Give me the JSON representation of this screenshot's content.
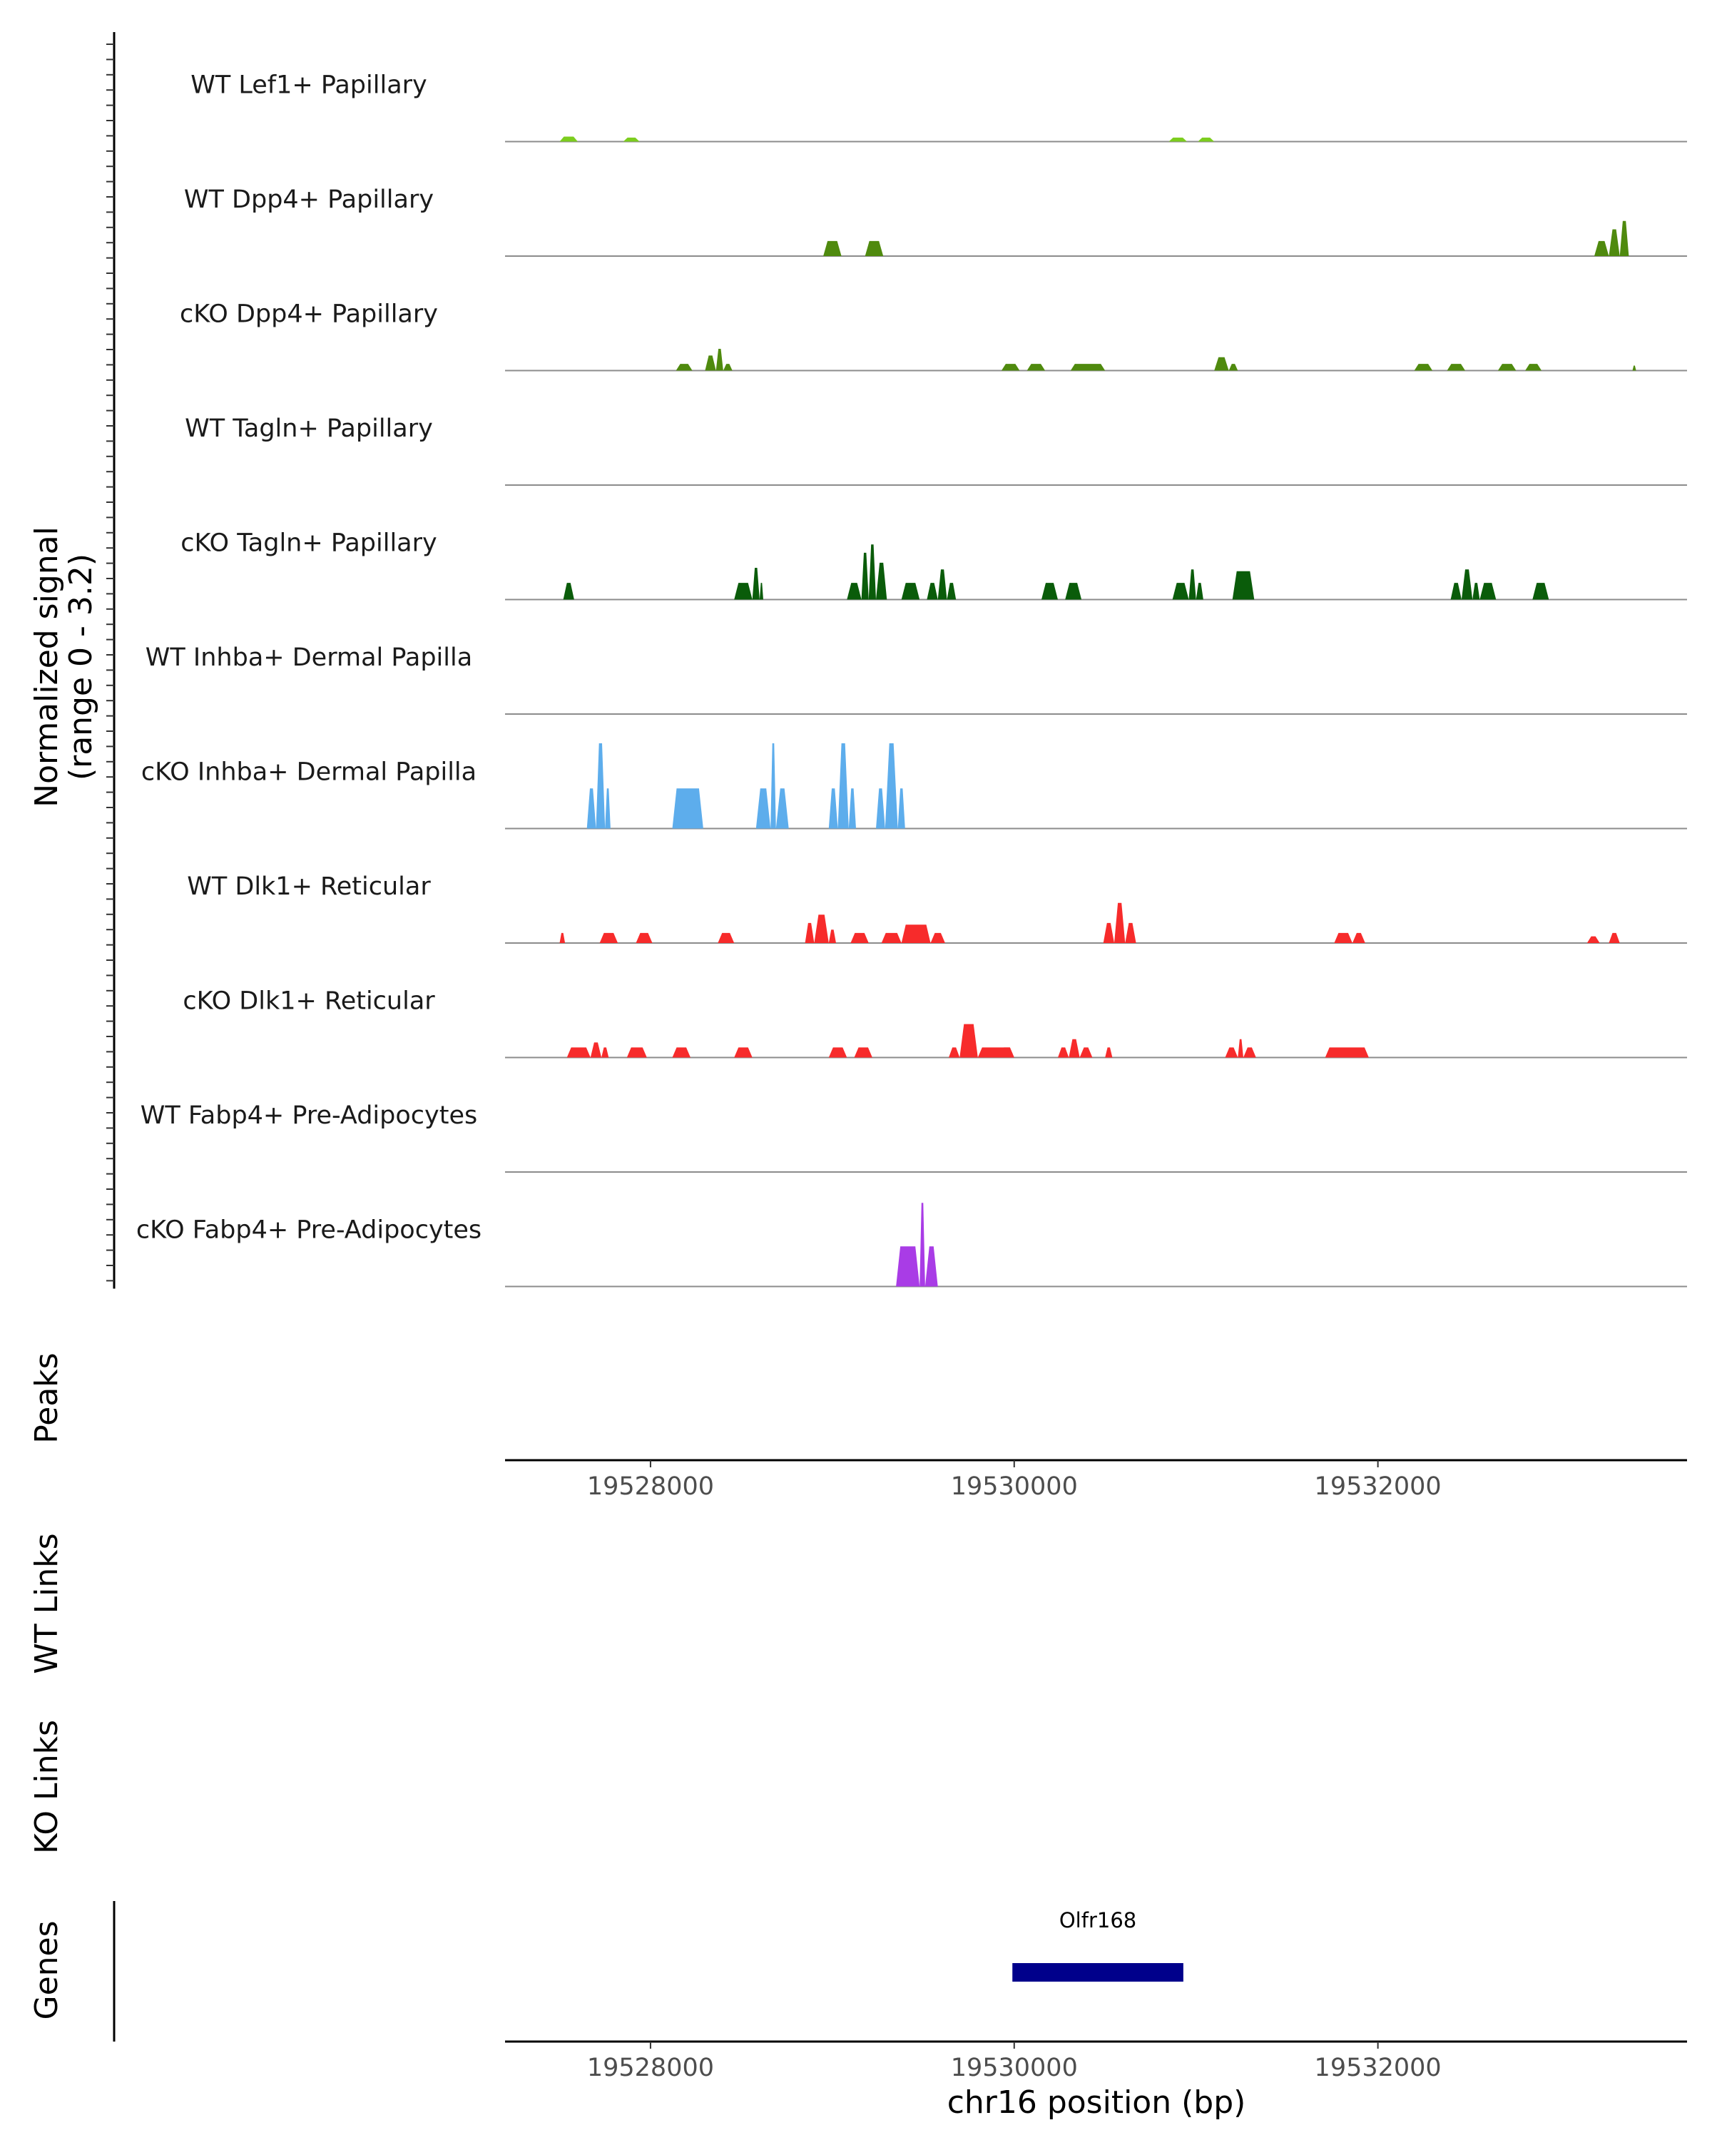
{
  "chart_data": {
    "type": "coverage-track",
    "region": {
      "chrom": "chr16",
      "start": 19527200,
      "end": 19533700
    },
    "coverage": {
      "ylabel_line1": "Normalized signal",
      "ylabel_line2": "(range 0 - 3.2)",
      "ylim": [
        0,
        3.2
      ],
      "tracks": [
        {
          "name": "WT Lef1+ Papillary",
          "color": "#7CCD1E",
          "segments": [
            [
              19527500,
              19527600,
              0.15
            ],
            [
              19527850,
              19527940,
              0.12
            ],
            [
              19530850,
              19530950,
              0.12
            ],
            [
              19531010,
              19531100,
              0.12
            ]
          ]
        },
        {
          "name": "WT Dpp4+ Papillary",
          "color": "#4F8A0E",
          "segments": [
            [
              19528950,
              19529050,
              0.45
            ],
            [
              19529180,
              19529280,
              0.45
            ],
            [
              19533190,
              19533270,
              0.45
            ],
            [
              19533270,
              19533330,
              0.8
            ],
            [
              19533330,
              19533380,
              1.05
            ]
          ]
        },
        {
          "name": "cKO Dpp4+ Papillary",
          "color": "#4F8A0E",
          "segments": [
            [
              19528140,
              19528230,
              0.2
            ],
            [
              19528300,
              19528360,
              0.45
            ],
            [
              19528360,
              19528400,
              0.65
            ],
            [
              19528400,
              19528450,
              0.2
            ],
            [
              19529930,
              19530030,
              0.2
            ],
            [
              19530070,
              19530170,
              0.2
            ],
            [
              19530310,
              19530500,
              0.2
            ],
            [
              19531100,
              19531180,
              0.4
            ],
            [
              19531180,
              19531230,
              0.2
            ],
            [
              19532200,
              19532300,
              0.2
            ],
            [
              19532380,
              19532480,
              0.2
            ],
            [
              19532660,
              19532760,
              0.2
            ],
            [
              19532810,
              19532900,
              0.2
            ],
            [
              19533400,
              19533420,
              0.15
            ]
          ]
        },
        {
          "name": "WT Tagln+ Papillary",
          "color": "#0A5C0A",
          "segments": []
        },
        {
          "name": "cKO Tagln+ Papillary",
          "color": "#0A5C0A",
          "segments": [
            [
              19527520,
              19527580,
              0.5
            ],
            [
              19528460,
              19528560,
              0.5
            ],
            [
              19528560,
              19528600,
              0.95
            ],
            [
              19528600,
              19528620,
              0.5
            ],
            [
              19529080,
              19529160,
              0.5
            ],
            [
              19529160,
              19529200,
              1.4
            ],
            [
              19529200,
              19529240,
              1.65
            ],
            [
              19529240,
              19529300,
              1.1
            ],
            [
              19529380,
              19529480,
              0.5
            ],
            [
              19529520,
              19529580,
              0.5
            ],
            [
              19529580,
              19529630,
              0.9
            ],
            [
              19529630,
              19529680,
              0.5
            ],
            [
              19530150,
              19530240,
              0.5
            ],
            [
              19530280,
              19530370,
              0.5
            ],
            [
              19530870,
              19530960,
              0.5
            ],
            [
              19530960,
              19531000,
              0.9
            ],
            [
              19531000,
              19531040,
              0.5
            ],
            [
              19531200,
              19531320,
              0.85
            ],
            [
              19532400,
              19532460,
              0.5
            ],
            [
              19532460,
              19532520,
              0.9
            ],
            [
              19532520,
              19532560,
              0.5
            ],
            [
              19532560,
              19532650,
              0.5
            ],
            [
              19532850,
              19532940,
              0.5
            ]
          ]
        },
        {
          "name": "WT Inhba+ Dermal Papilla",
          "color": "#5DADEC",
          "segments": []
        },
        {
          "name": "cKO Inhba+ Dermal Papilla",
          "color": "#5DADEC",
          "segments": [
            [
              19527650,
              19527700,
              1.2
            ],
            [
              19527700,
              19527750,
              2.55
            ],
            [
              19527750,
              19527780,
              1.2
            ],
            [
              19528120,
              19528290,
              1.2
            ],
            [
              19528580,
              19528660,
              1.2
            ],
            [
              19528660,
              19528690,
              2.55
            ],
            [
              19528690,
              19528760,
              1.2
            ],
            [
              19528980,
              19529030,
              1.2
            ],
            [
              19529030,
              19529090,
              2.55
            ],
            [
              19529090,
              19529130,
              1.2
            ],
            [
              19529240,
              19529290,
              1.2
            ],
            [
              19529290,
              19529360,
              2.55
            ],
            [
              19529360,
              19529400,
              1.2
            ]
          ]
        },
        {
          "name": "WT Dlk1+ Reticular",
          "color": "#F72B2B",
          "segments": [
            [
              19527500,
              19527530,
              0.3
            ],
            [
              19527720,
              19527820,
              0.3
            ],
            [
              19527920,
              19528010,
              0.3
            ],
            [
              19528370,
              19528460,
              0.3
            ],
            [
              19528850,
              19528900,
              0.6
            ],
            [
              19528900,
              19528980,
              0.85
            ],
            [
              19528980,
              19529020,
              0.4
            ],
            [
              19529100,
              19529200,
              0.3
            ],
            [
              19529270,
              19529380,
              0.3
            ],
            [
              19529380,
              19529540,
              0.55
            ],
            [
              19529540,
              19529620,
              0.3
            ],
            [
              19530490,
              19530550,
              0.6
            ],
            [
              19530550,
              19530610,
              1.2
            ],
            [
              19530610,
              19530670,
              0.6
            ],
            [
              19531760,
              19531860,
              0.3
            ],
            [
              19531860,
              19531930,
              0.3
            ],
            [
              19533150,
              19533220,
              0.2
            ],
            [
              19533270,
              19533330,
              0.3
            ]
          ]
        },
        {
          "name": "cKO Dlk1+ Reticular",
          "color": "#F72B2B",
          "segments": [
            [
              19527540,
              19527670,
              0.3
            ],
            [
              19527670,
              19527730,
              0.45
            ],
            [
              19527730,
              19527770,
              0.3
            ],
            [
              19527870,
              19527980,
              0.3
            ],
            [
              19528120,
              19528220,
              0.3
            ],
            [
              19528460,
              19528560,
              0.3
            ],
            [
              19528980,
              19529080,
              0.3
            ],
            [
              19529120,
              19529220,
              0.3
            ],
            [
              19529640,
              19529700,
              0.3
            ],
            [
              19529700,
              19529800,
              1.0
            ],
            [
              19529800,
              19530000,
              0.3
            ],
            [
              19529920,
              19530000,
              0.3
            ],
            [
              19530240,
              19530300,
              0.3
            ],
            [
              19530300,
              19530360,
              0.55
            ],
            [
              19530360,
              19530430,
              0.3
            ],
            [
              19530500,
              19530540,
              0.3
            ],
            [
              19531160,
              19531230,
              0.3
            ],
            [
              19531230,
              19531260,
              0.55
            ],
            [
              19531260,
              19531330,
              0.3
            ],
            [
              19531710,
              19531950,
              0.3
            ]
          ]
        },
        {
          "name": "WT Fabp4+ Pre-Adipocytes",
          "color": "#A93CE6",
          "segments": []
        },
        {
          "name": "cKO Fabp4+ Pre-Adipocytes",
          "color": "#A93CE6",
          "segments": [
            [
              19529350,
              19529480,
              1.2
            ],
            [
              19529480,
              19529510,
              2.5
            ],
            [
              19529510,
              19529580,
              1.2
            ]
          ]
        }
      ]
    },
    "peaks": {
      "label": "Peaks",
      "ticks": [
        "19528000",
        "19530000",
        "19532000"
      ],
      "tick_values": [
        19528000,
        19530000,
        19532000
      ]
    },
    "wt_links": {
      "label": "WT Links"
    },
    "ko_links": {
      "label": "KO Links"
    },
    "genes": {
      "label": "Genes",
      "items": [
        {
          "name": "Olfr168",
          "start": 19529990,
          "end": 19530930,
          "color": "#00008B"
        }
      ],
      "ticks": [
        "19528000",
        "19530000",
        "19532000"
      ],
      "tick_values": [
        19528000,
        19530000,
        19532000
      ],
      "xlabel": "chr16 position (bp)"
    }
  }
}
